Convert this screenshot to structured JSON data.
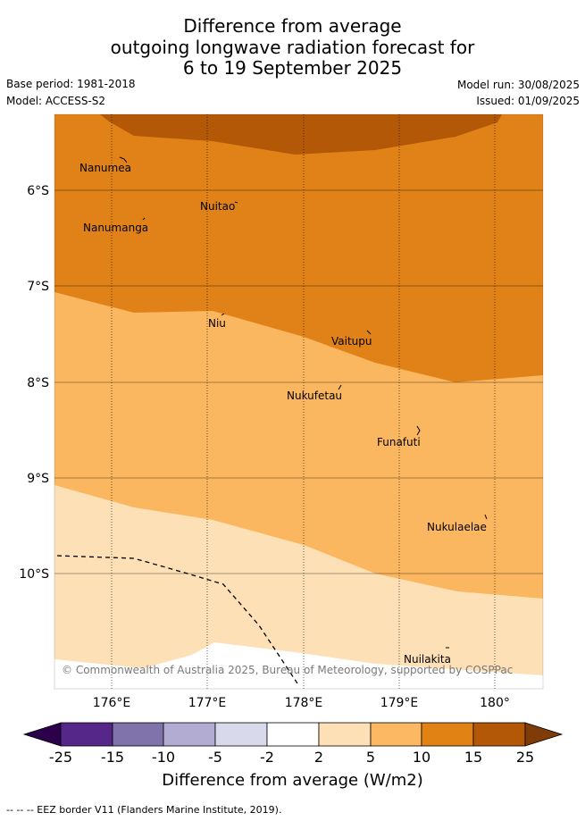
{
  "title_lines": [
    "Difference from average",
    "outgoing longwave radiation forecast for",
    "6 to 19 September 2025"
  ],
  "base_period": "Base period: 1981-2018",
  "model": "Model: ACCESS-S2",
  "model_run": "Model run: 30/08/2025",
  "issued": "Issued: 01/09/2025",
  "map": {
    "lon_ticks": [
      "176°E",
      "177°E",
      "178°E",
      "179°E",
      "180°"
    ],
    "lat_ticks": [
      "6°S",
      "7°S",
      "8°S",
      "9°S",
      "10°S"
    ],
    "places": [
      {
        "name": "Nanumea"
      },
      {
        "name": "Nuitao"
      },
      {
        "name": "Nanumanga"
      },
      {
        "name": "Niu"
      },
      {
        "name": "Vaitupu"
      },
      {
        "name": "Nukufetau"
      },
      {
        "name": "Funafuti"
      },
      {
        "name": "Nukulaelae"
      },
      {
        "name": "Nuilakita"
      }
    ],
    "credit": "© Commonwealth of Australia 2025, Bureau of Meteorology, supported by COSPPac",
    "colors": {
      "c2_5": "#fde0b6",
      "c5_10": "#fbb760",
      "c10_15": "#e08217",
      "c15_25": "#b35807"
    }
  },
  "colorbar": {
    "labels": [
      "-25",
      "-15",
      "-10",
      "-5",
      "-2",
      "2",
      "5",
      "10",
      "15",
      "25"
    ],
    "colors": [
      "#2d004b",
      "#542788",
      "#8073ac",
      "#b2abd2",
      "#d8daeb",
      "#ffffff",
      "#fee0b6",
      "#fdb863",
      "#e08214",
      "#b35806",
      "#7f3b08"
    ],
    "title": "Difference from average (W/m2)"
  },
  "footnote": "--  --  -- EEZ border V11 (Flanders Marine Institute, 2019)."
}
